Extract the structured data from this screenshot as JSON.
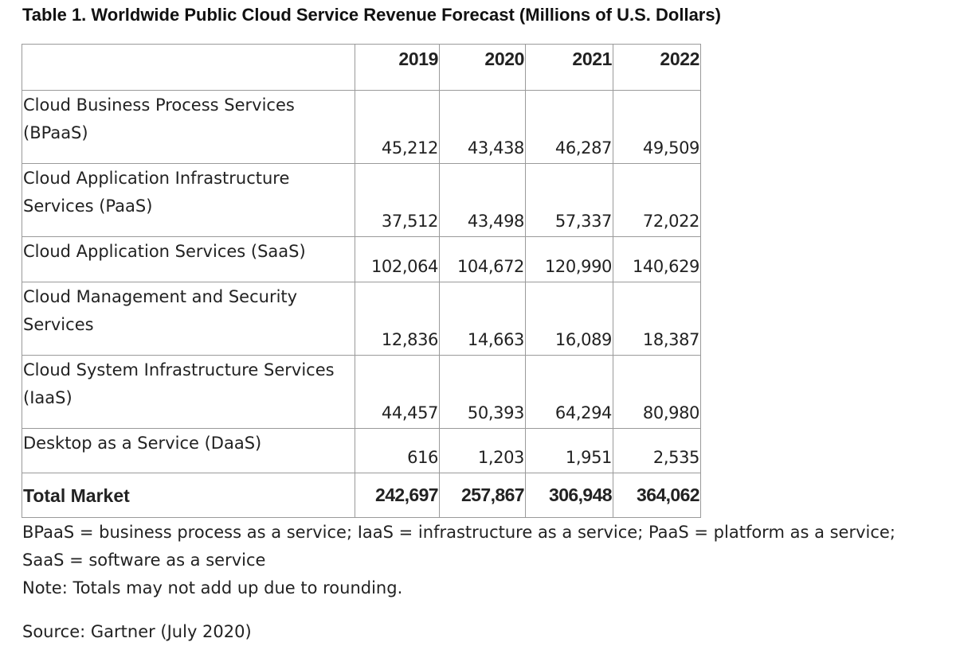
{
  "title": "Table 1. Worldwide Public Cloud Service Revenue Forecast (Millions of U.S. Dollars)",
  "table": {
    "columns": [
      "",
      "2019",
      "2020",
      "2021",
      "2022"
    ],
    "rows": [
      {
        "label": "Cloud Business Process Services (BPaaS)",
        "values": [
          "45,212",
          "43,438",
          "46,287",
          "49,509"
        ]
      },
      {
        "label": "Cloud Application Infrastructure Services (PaaS)",
        "values": [
          "37,512",
          "43,498",
          "57,337",
          "72,022"
        ]
      },
      {
        "label": "Cloud Application Services (SaaS)",
        "values": [
          "102,064",
          "104,672",
          "120,990",
          "140,629"
        ]
      },
      {
        "label": "Cloud Management and Security Services",
        "values": [
          "12,836",
          "14,663",
          "16,089",
          "18,387"
        ]
      },
      {
        "label": "Cloud System Infrastructure Services (IaaS)",
        "values": [
          "44,457",
          "50,393",
          "64,294",
          "80,980"
        ]
      },
      {
        "label": "Desktop as a Service (DaaS)",
        "values": [
          "616",
          "1,203",
          "1,951",
          "2,535"
        ]
      }
    ],
    "total": {
      "label": "Total Market",
      "values": [
        "242,697",
        "257,867",
        "306,948",
        "364,062"
      ]
    }
  },
  "notes": {
    "abbreviations": "BPaaS = business process as a service; IaaS = infrastructure as a service; PaaS = platform as a service; SaaS = software as a service",
    "rounding": "Note: Totals may not add up due to rounding.",
    "source": "Source: Gartner (July 2020)"
  }
}
